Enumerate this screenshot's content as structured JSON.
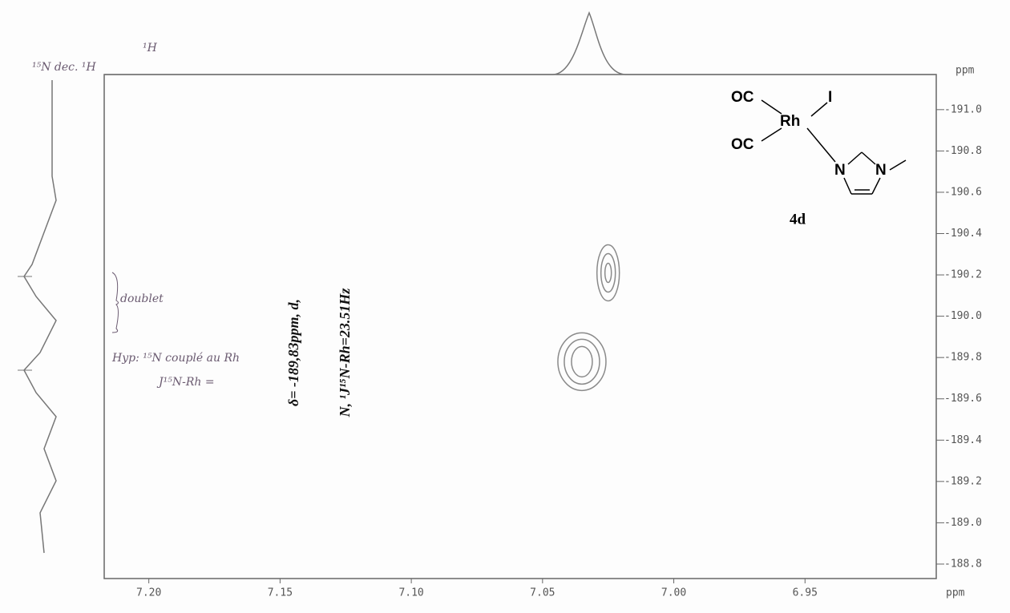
{
  "chart_data": {
    "type": "contour",
    "xlabel": "ppm",
    "ylabel": "ppm",
    "xlim": [
      7.217,
      6.9
    ],
    "ylim": [
      -188.73,
      -191.17
    ],
    "xticks": [
      {
        "value": 7.2,
        "label": "7.20"
      },
      7.15,
      {
        "value": 7.1,
        "label": "7.10"
      },
      7.05,
      {
        "value": 7,
        "label": "7.00"
      },
      6.95
    ],
    "yticks": [
      {
        "value": -191,
        "label": "-191.0"
      },
      -190.8,
      -190.6,
      -190.4,
      -190.2,
      {
        "value": -190,
        "label": "-190.0"
      },
      -189.8,
      -189.6,
      -189.4,
      -189.2,
      {
        "value": -189,
        "label": "-189.0"
      },
      -188.8
    ],
    "peaks": {
      "x": [
        7.025,
        7.035
      ],
      "y": [
        -190.21,
        -189.78
      ]
    },
    "color": "#8a8a8a",
    "annotations": [
      "δ= -189,83ppm, d,",
      "N, ¹J¹⁵N-Rh=23.51Hz"
    ]
  },
  "structure": {
    "label": "4d",
    "atoms": [
      "OC",
      "Rh",
      "I",
      "OC",
      "N",
      "N"
    ]
  },
  "handwritten_notes": [
    "¹⁵N dec. ¹H",
    "¹H",
    "doublet",
    "Hyp: ¹⁵N couplé au Rh",
    "J¹⁵N-Rh ="
  ]
}
